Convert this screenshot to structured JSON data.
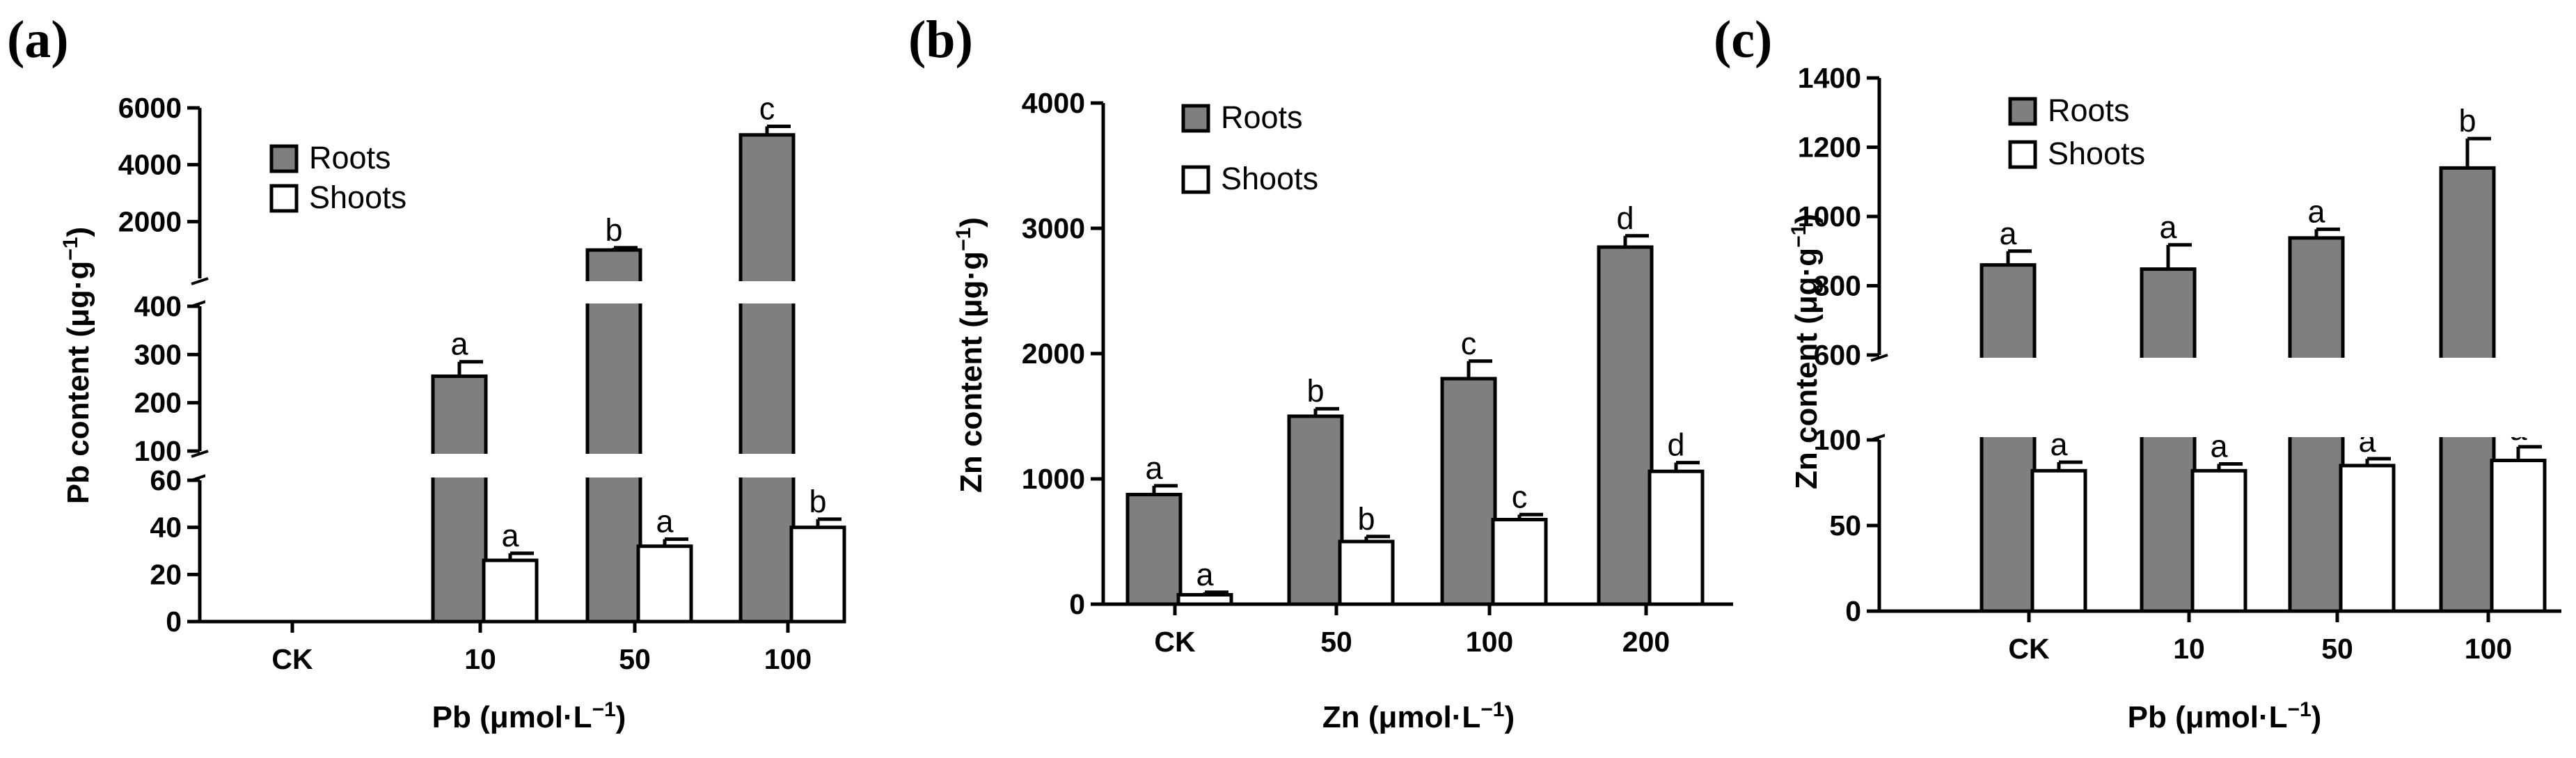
{
  "colors": {
    "roots": "#7f7f7f",
    "shoots": "#ffffff",
    "stroke": "#000000",
    "break": "#ffffff"
  },
  "chart_data": [
    {
      "type": "bar",
      "panel_label": "(a)",
      "title": "",
      "xlabel": "Pb  (μmol·L⁻¹)",
      "ylabel": "Pb content (μg·g⁻¹)",
      "categories": [
        "CK",
        "10",
        "50",
        "100"
      ],
      "series": [
        {
          "name": "Roots",
          "values": [
            null,
            255,
            1000,
            5050
          ],
          "errors": [
            null,
            30,
            80,
            300
          ],
          "letters": [
            "",
            "a",
            "b",
            "c"
          ]
        },
        {
          "name": "Shoots",
          "values": [
            null,
            26,
            32,
            40
          ],
          "errors": [
            null,
            3,
            3,
            3.5
          ],
          "letters": [
            "",
            "a",
            "a",
            "b"
          ]
        }
      ],
      "y_segments": [
        {
          "range": [
            0,
            60
          ],
          "ticks": [
            "0",
            "20",
            "40",
            "60"
          ]
        },
        {
          "range": [
            100,
            400
          ],
          "ticks": [
            "100",
            "200",
            "300",
            "400"
          ]
        },
        {
          "range": [
            0,
            6000
          ],
          "ticks": [
            "2000",
            "4000",
            "6000"
          ]
        }
      ],
      "legend": {
        "position": "top-left",
        "entries": [
          "Roots",
          "Shoots"
        ]
      }
    },
    {
      "type": "bar",
      "panel_label": "(b)",
      "title": "",
      "xlabel": "Zn (μmol·L⁻¹)",
      "ylabel": "Zn content (μg·g⁻¹)",
      "categories": [
        "CK",
        "50",
        "100",
        "200"
      ],
      "series": [
        {
          "name": "Roots",
          "values": [
            875,
            1500,
            1800,
            2850
          ],
          "errors": [
            70,
            60,
            140,
            90
          ],
          "letters": [
            "a",
            "b",
            "c",
            "d"
          ]
        },
        {
          "name": "Shoots",
          "values": [
            75,
            500,
            675,
            1060
          ],
          "errors": [
            20,
            40,
            40,
            70
          ],
          "letters": [
            "a",
            "b",
            "c",
            "d"
          ]
        }
      ],
      "y_segments": [
        {
          "range": [
            0,
            4000
          ],
          "ticks": [
            "0",
            "1000",
            "2000",
            "3000",
            "4000"
          ]
        }
      ],
      "legend": {
        "position": "top-left",
        "entries": [
          "Roots",
          "Shoots"
        ]
      }
    },
    {
      "type": "bar",
      "panel_label": "(c)",
      "title": "",
      "xlabel": "Pb (μmol·L⁻¹)",
      "ylabel": "Zn content (μg·g⁻¹)",
      "categories": [
        "CK",
        "10",
        "50",
        "100"
      ],
      "series": [
        {
          "name": "Roots",
          "values": [
            860,
            848,
            938,
            1140
          ],
          "errors": [
            40,
            70,
            25,
            85
          ],
          "letters": [
            "a",
            "a",
            "a",
            "b"
          ]
        },
        {
          "name": "Shoots",
          "values": [
            82,
            82,
            85,
            88
          ],
          "errors": [
            5,
            4,
            4,
            8
          ],
          "letters": [
            "a",
            "a",
            "a",
            "a"
          ]
        }
      ],
      "y_segments": [
        {
          "range": [
            0,
            100
          ],
          "ticks": [
            "0",
            "50",
            "100"
          ]
        },
        {
          "range": [
            600,
            1400
          ],
          "ticks": [
            "600",
            "800",
            "1000",
            "1200",
            "1400"
          ]
        }
      ],
      "legend": {
        "position": "top-left",
        "entries": [
          "Roots",
          "Shoots"
        ]
      }
    }
  ]
}
